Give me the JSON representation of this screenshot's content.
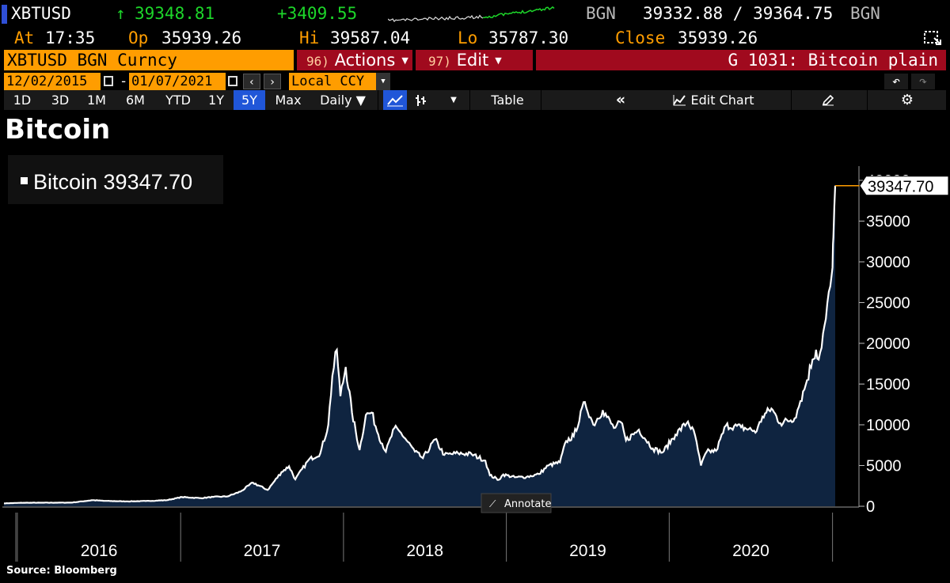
{
  "quote": {
    "ticker": "XBTUSD",
    "arrow": "↑",
    "last": "39348.81",
    "change": "+3409.55",
    "source1": "BGN",
    "bid_ask": "39332.88 / 39364.75",
    "source2": "BGN",
    "at_label": "At",
    "at_time": "17:35",
    "op_label": "Op",
    "op_value": "35939.26",
    "hi_label": "Hi",
    "hi_value": "39587.04",
    "lo_label": "Lo",
    "lo_value": "35787.30",
    "close_label": "Close",
    "close_value": "35939.26"
  },
  "header": {
    "security": "XBTUSD BGN Curncy",
    "actions_num": "96)",
    "actions_label": "Actions",
    "edit_num": "97)",
    "edit_label": "Edit",
    "chart_name": "G 1031: Bitcoin plain"
  },
  "dates": {
    "start": "12/02/2015",
    "dash": "-",
    "end": "01/07/2021",
    "currency": "Local CCY"
  },
  "toolbar": {
    "ranges": [
      "1D",
      "3D",
      "1M",
      "6M",
      "YTD",
      "1Y",
      "5Y",
      "Max"
    ],
    "selected_range": "5Y",
    "period": "Daily ▼",
    "table_label": "Table",
    "collapse_label": "«",
    "edit_chart_label": "Edit Chart"
  },
  "title": "Bitcoin",
  "source_text": "Source:  Bloomberg",
  "annotate_label": "Annotate",
  "colors": {
    "line": "#ffffff",
    "area": "#0f2440",
    "accent": "#ff9d00",
    "lastTag": "#ff9d00"
  },
  "chart_data": {
    "type": "area",
    "series": [
      {
        "name": "Bitcoin",
        "legend_value": "39347.70",
        "last_value_label": "39347.70",
        "points": [
          [
            "2015-12-02",
            360
          ],
          [
            "2016-01-15",
            430
          ],
          [
            "2016-03-01",
            435
          ],
          [
            "2016-05-01",
            450
          ],
          [
            "2016-06-18",
            750
          ],
          [
            "2016-07-15",
            660
          ],
          [
            "2016-09-01",
            600
          ],
          [
            "2016-10-15",
            640
          ],
          [
            "2016-12-01",
            750
          ],
          [
            "2017-01-04",
            1130
          ],
          [
            "2017-02-15",
            1000
          ],
          [
            "2017-03-15",
            1150
          ],
          [
            "2017-04-15",
            1200
          ],
          [
            "2017-05-15",
            1800
          ],
          [
            "2017-06-12",
            2900
          ],
          [
            "2017-07-15",
            2000
          ],
          [
            "2017-08-15",
            4200
          ],
          [
            "2017-09-01",
            4900
          ],
          [
            "2017-09-15",
            3300
          ],
          [
            "2017-10-15",
            5700
          ],
          [
            "2017-11-10",
            6500
          ],
          [
            "2017-11-28",
            10000
          ],
          [
            "2017-12-07",
            16000
          ],
          [
            "2017-12-17",
            19200
          ],
          [
            "2017-12-25",
            13500
          ],
          [
            "2018-01-06",
            17100
          ],
          [
            "2018-01-20",
            11500
          ],
          [
            "2018-02-06",
            6900
          ],
          [
            "2018-02-20",
            11200
          ],
          [
            "2018-03-05",
            11500
          ],
          [
            "2018-03-20",
            8800
          ],
          [
            "2018-04-06",
            6700
          ],
          [
            "2018-04-25",
            9600
          ],
          [
            "2018-05-10",
            9000
          ],
          [
            "2018-06-10",
            6700
          ],
          [
            "2018-06-28",
            5900
          ],
          [
            "2018-07-25",
            8200
          ],
          [
            "2018-08-15",
            6300
          ],
          [
            "2018-09-15",
            6500
          ],
          [
            "2018-10-15",
            6400
          ],
          [
            "2018-11-15",
            5600
          ],
          [
            "2018-11-25",
            3800
          ],
          [
            "2018-12-15",
            3250
          ],
          [
            "2018-12-25",
            3900
          ],
          [
            "2019-01-20",
            3550
          ],
          [
            "2019-02-15",
            3600
          ],
          [
            "2019-03-15",
            3950
          ],
          [
            "2019-04-05",
            5000
          ],
          [
            "2019-05-01",
            5400
          ],
          [
            "2019-05-15",
            8000
          ],
          [
            "2019-06-01",
            8600
          ],
          [
            "2019-06-26",
            12800
          ],
          [
            "2019-07-15",
            10000
          ],
          [
            "2019-08-05",
            11800
          ],
          [
            "2019-08-30",
            9600
          ],
          [
            "2019-09-15",
            10300
          ],
          [
            "2019-09-26",
            8100
          ],
          [
            "2019-10-25",
            9400
          ],
          [
            "2019-11-25",
            7100
          ],
          [
            "2019-12-17",
            6600
          ],
          [
            "2020-01-15",
            8800
          ],
          [
            "2020-02-12",
            10400
          ],
          [
            "2020-02-28",
            8700
          ],
          [
            "2020-03-12",
            5000
          ],
          [
            "2020-03-25",
            6700
          ],
          [
            "2020-04-15",
            6800
          ],
          [
            "2020-05-07",
            9900
          ],
          [
            "2020-06-10",
            9700
          ],
          [
            "2020-07-15",
            9200
          ],
          [
            "2020-07-28",
            11000
          ],
          [
            "2020-08-17",
            12000
          ],
          [
            "2020-09-06",
            10200
          ],
          [
            "2020-10-08",
            10800
          ],
          [
            "2020-10-21",
            12900
          ],
          [
            "2020-11-05",
            15500
          ],
          [
            "2020-11-17",
            18000
          ],
          [
            "2020-11-25",
            19200
          ],
          [
            "2020-12-01",
            18000
          ],
          [
            "2020-12-17",
            23000
          ],
          [
            "2020-12-27",
            27000
          ],
          [
            "2021-01-01",
            29300
          ],
          [
            "2021-01-03",
            33000
          ],
          [
            "2021-01-07",
            39347.7
          ]
        ]
      }
    ],
    "x_range": [
      "2015-12-02",
      "2021-01-07"
    ],
    "year_labels": [
      "2016",
      "2017",
      "2018",
      "2019",
      "2020"
    ],
    "y_ticks": [
      "0",
      "5000",
      "10000",
      "15000",
      "20000",
      "25000",
      "30000",
      "35000",
      "40000"
    ],
    "ylim": [
      0,
      40000
    ],
    "grid": false,
    "legend": "top-left"
  }
}
